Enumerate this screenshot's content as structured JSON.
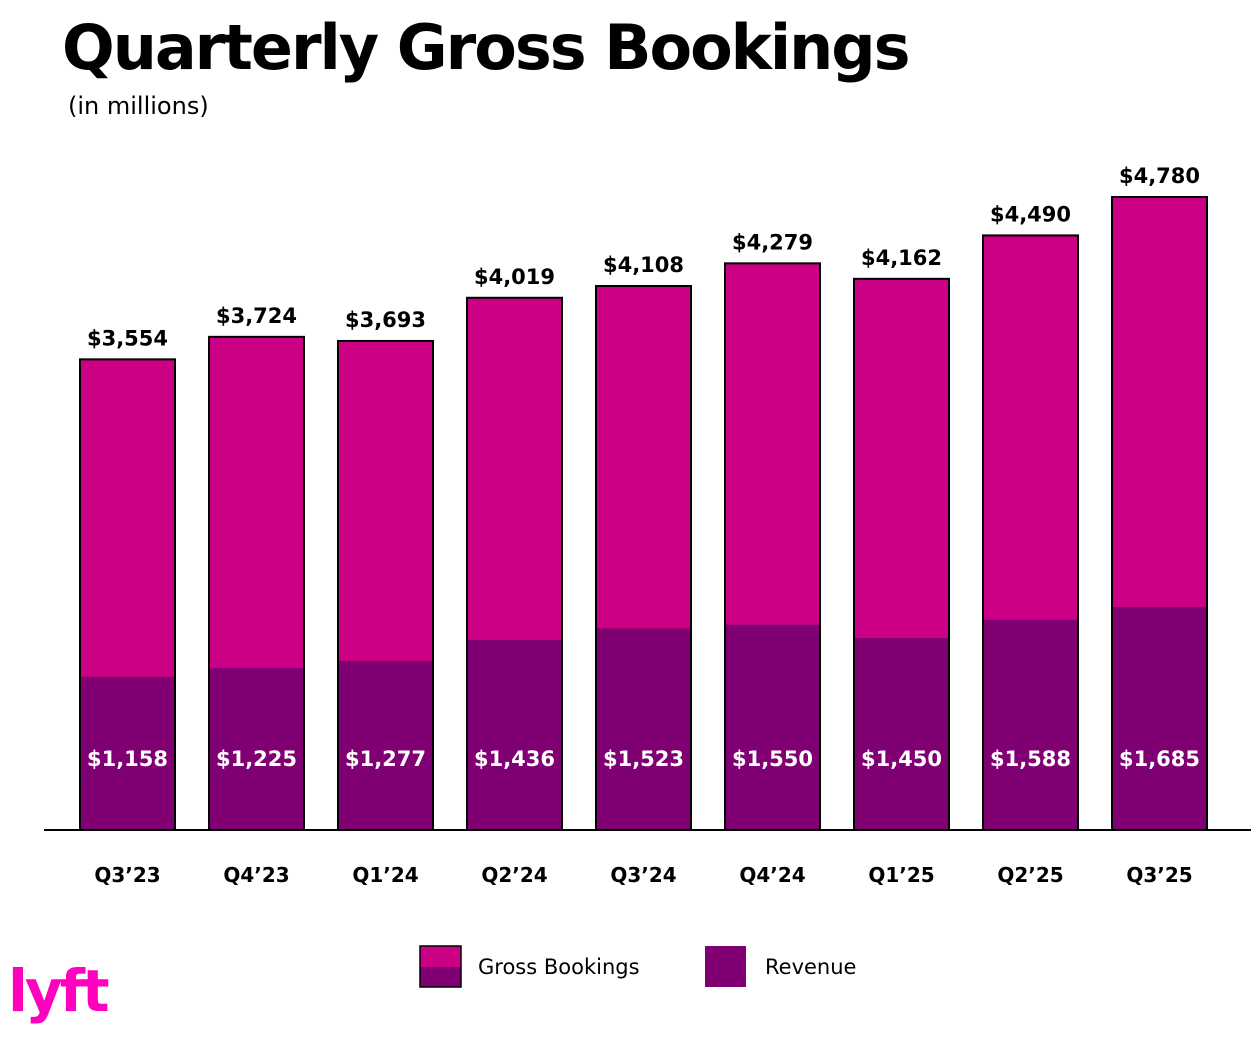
{
  "chart_data": {
    "type": "bar",
    "stacked": false,
    "overlaid": true,
    "title": "Quarterly Gross Bookings",
    "subtitle": "(in millions)",
    "categories": [
      "Q3’23",
      "Q4’23",
      "Q1’24",
      "Q2’24",
      "Q3’24",
      "Q4’24",
      "Q1’25",
      "Q2’25",
      "Q3’25"
    ],
    "series": [
      {
        "name": "Gross Bookings",
        "values": [
          3554,
          3724,
          3693,
          4019,
          4108,
          4279,
          4162,
          4490,
          4780
        ],
        "labels": [
          "$3,554",
          "$3,724",
          "$3,693",
          "$4,019",
          "$4,108",
          "$4,279",
          "$4,162",
          "$4,490",
          "$4,780"
        ],
        "color": "#CC0084"
      },
      {
        "name": "Revenue",
        "values": [
          1158,
          1225,
          1277,
          1436,
          1523,
          1550,
          1450,
          1588,
          1685
        ],
        "labels": [
          "$1,158",
          "$1,225",
          "$1,277",
          "$1,436",
          "$1,523",
          "$1,550",
          "$1,450",
          "$1,588",
          "$1,685"
        ],
        "color": "#800074"
      }
    ],
    "ylim": [
      0,
      4780
    ],
    "grid": false,
    "legend_position": "bottom-center"
  },
  "brand": {
    "logo_text": "lyft",
    "logo_color": "#FF00BF"
  }
}
